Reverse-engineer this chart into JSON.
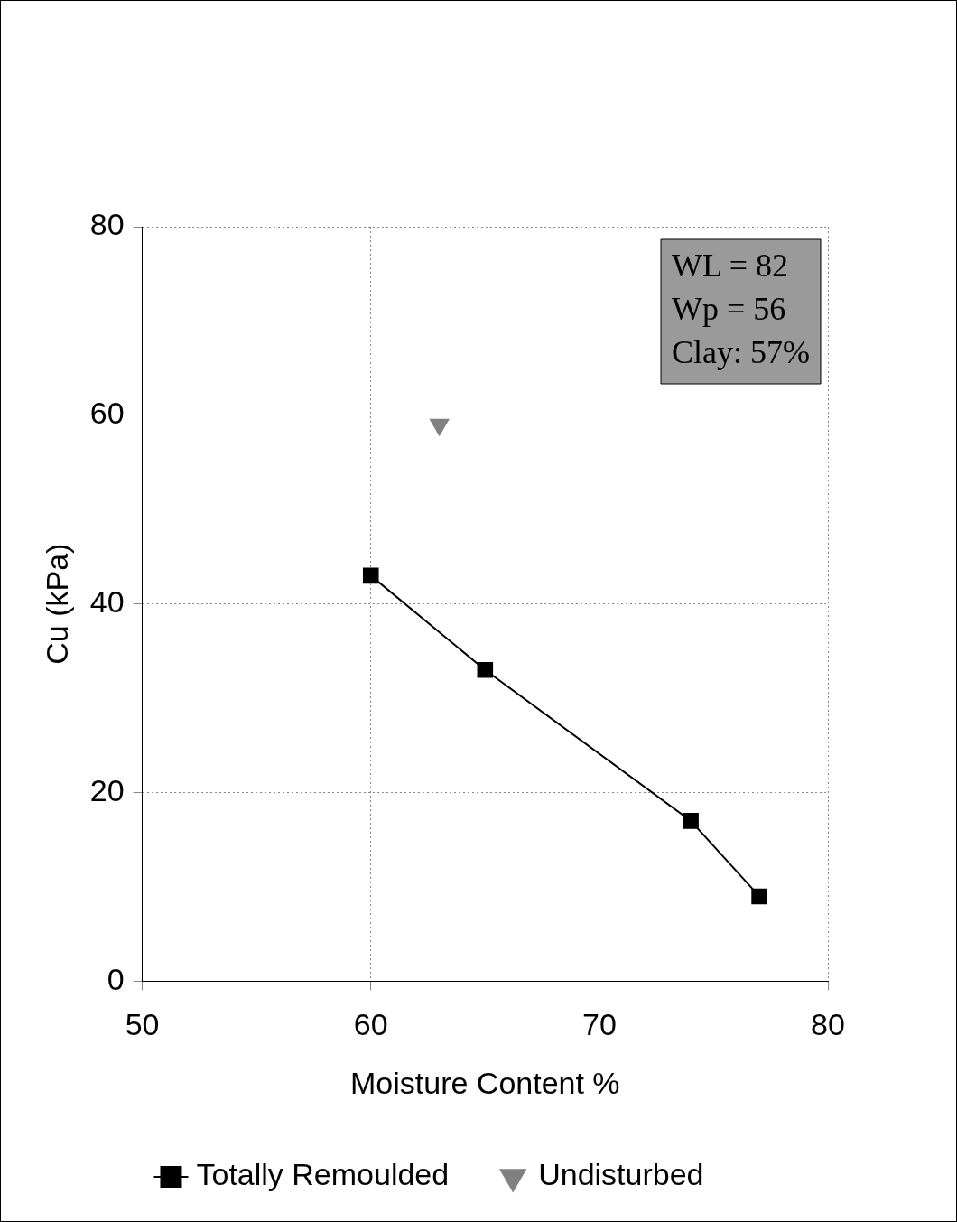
{
  "chart_data": {
    "type": "line",
    "xlabel": "Moisture Content %",
    "ylabel": "Cu (kPa)",
    "xlim": [
      50,
      80
    ],
    "xticks": [
      50,
      60,
      70,
      80
    ],
    "ylim": [
      0,
      80
    ],
    "yticks": [
      0,
      20,
      40,
      60,
      80
    ],
    "grid": true,
    "legend": "bottom",
    "annotations": [
      "WL = 82",
      "Wp = 56",
      "Clay: 57%"
    ],
    "series": [
      {
        "name": "Totally Remoulded",
        "type": "line",
        "color": "#000000",
        "marker": "square",
        "x": [
          60,
          65,
          74,
          77
        ],
        "values": [
          43,
          33,
          17,
          9
        ]
      },
      {
        "name": "Undisturbed",
        "type": "scatter",
        "color": "#808080",
        "marker": "triangle",
        "x": [
          63
        ],
        "values": [
          59
        ]
      }
    ]
  }
}
